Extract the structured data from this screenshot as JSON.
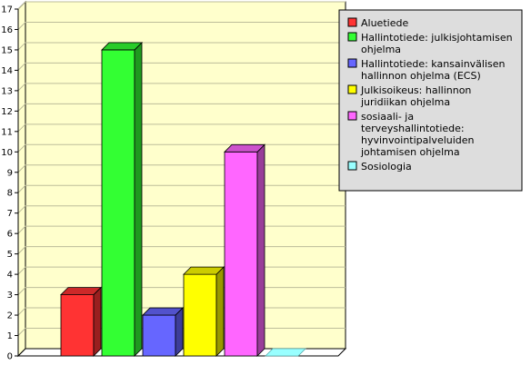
{
  "chart_data": {
    "type": "bar",
    "categories": [
      "Aluetiede",
      "Hallintotiede: julkisjohtamisen ohjelma",
      "Hallintotiede: kansainvälisen hallinnon ohjelma (ECS)",
      "Julkisoikeus: hallinnon juridiikan ohjelma",
      "sosiaali- ja terveyshallintotiede: hyvinvointipalveluiden johtamisen ohjelma",
      "Sosiologia"
    ],
    "values": [
      3,
      15,
      2,
      4,
      10,
      0
    ],
    "colors": [
      "#ff3333",
      "#33ff33",
      "#6666ff",
      "#ffff00",
      "#ff66ff",
      "#99ffff"
    ],
    "ylim": [
      0,
      17
    ],
    "yticks": [
      0,
      1,
      2,
      3,
      4,
      5,
      6,
      7,
      8,
      9,
      10,
      11,
      12,
      13,
      14,
      15,
      16,
      17
    ],
    "grid": true,
    "plot_background": "#ffffcc",
    "title": "",
    "xlabel": "",
    "ylabel": "",
    "legend": {
      "position": "right",
      "background": "#dddddd",
      "entries": [
        {
          "lines": [
            "Aluetiede"
          ]
        },
        {
          "lines": [
            "Hallintotiede: julkisjohtamisen",
            "ohjelma"
          ]
        },
        {
          "lines": [
            "Hallintotiede: kansainvälisen",
            "hallinnon ohjelma (ECS)"
          ]
        },
        {
          "lines": [
            "Julkisoikeus: hallinnon",
            "juridiikan ohjelma"
          ]
        },
        {
          "lines": [
            "sosiaali- ja",
            "terveyshallintotiede:",
            "hyvinvointipalveluiden",
            "johtamisen ohjelma"
          ]
        },
        {
          "lines": [
            "Sosiologia"
          ]
        }
      ]
    }
  }
}
